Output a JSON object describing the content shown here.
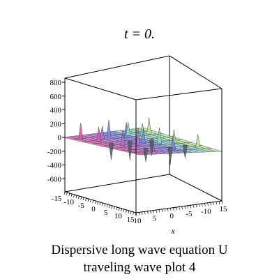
{
  "chart_data": {
    "type": "surface",
    "title": "t = 0.",
    "caption_line1": "Dispersive long wave equation U",
    "caption_line2": "traveling wave plot 4",
    "xlabel": "x",
    "zlim": [
      -700,
      850
    ],
    "z_ticks": [
      "800",
      "600",
      "400",
      "200",
      "0",
      "-200",
      "-400",
      "-600"
    ],
    "z_tick_values": [
      800,
      600,
      400,
      200,
      0,
      -200,
      -400,
      -600
    ],
    "y_ticks": [
      "-15",
      "-10",
      "-5",
      "0",
      "5",
      "10",
      "15"
    ],
    "x_ticks": [
      "10",
      "5",
      "0",
      "-5",
      "-10",
      "15"
    ],
    "grid": false,
    "legend": "none",
    "surface_colors": [
      "#d85fb0",
      "#b06fd0",
      "#7f86e0",
      "#8fd6c8",
      "#b7e39a"
    ],
    "spikes": [
      {
        "u": 0.08,
        "v": 0.15,
        "z": 240
      },
      {
        "u": 0.16,
        "v": 0.3,
        "z": 210
      },
      {
        "u": 0.28,
        "v": 0.22,
        "z": 190
      },
      {
        "u": 0.4,
        "v": 0.18,
        "z": 250
      },
      {
        "u": 0.52,
        "v": 0.28,
        "z": 230
      },
      {
        "u": 0.62,
        "v": 0.2,
        "z": 200
      },
      {
        "u": 0.74,
        "v": 0.26,
        "z": 180
      },
      {
        "u": 0.86,
        "v": 0.22,
        "z": 240
      },
      {
        "u": 0.22,
        "v": 0.55,
        "z": 220
      },
      {
        "u": 0.36,
        "v": 0.6,
        "z": 260
      },
      {
        "u": 0.5,
        "v": 0.52,
        "z": 210
      },
      {
        "u": 0.64,
        "v": 0.58,
        "z": 230
      },
      {
        "u": 0.8,
        "v": 0.6,
        "z": 200
      },
      {
        "u": 0.3,
        "v": 0.85,
        "z": 180
      },
      {
        "u": 0.58,
        "v": 0.82,
        "z": 200
      },
      {
        "u": 0.9,
        "v": 0.8,
        "z": 190
      },
      {
        "u": 0.2,
        "v": 0.42,
        "z": -240
      },
      {
        "u": 0.45,
        "v": 0.4,
        "z": -280
      },
      {
        "u": 0.7,
        "v": 0.42,
        "z": -230
      },
      {
        "u": 0.34,
        "v": 0.72,
        "z": -200
      },
      {
        "u": 0.62,
        "v": 0.74,
        "z": -260
      },
      {
        "u": 0.84,
        "v": 0.7,
        "z": -190
      }
    ]
  }
}
